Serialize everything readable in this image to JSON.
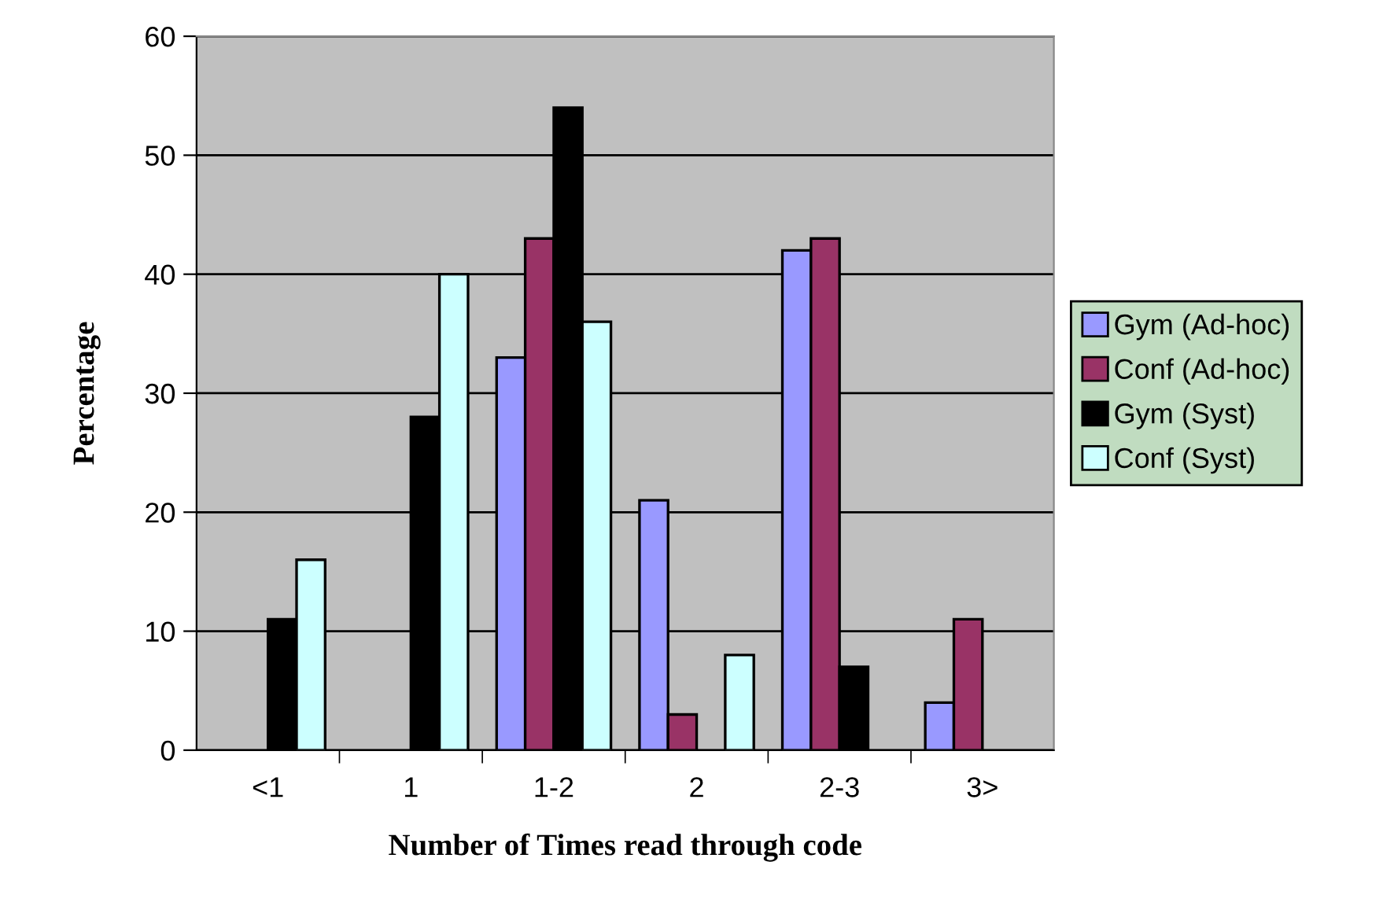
{
  "chart_data": {
    "type": "bar",
    "xlabel": "Number of Times read through code",
    "ylabel": "Percentage",
    "categories": [
      "<1",
      "1",
      "1-2",
      "2",
      "2-3",
      "3>"
    ],
    "series": [
      {
        "name": "Gym (Ad-hoc)",
        "color": "#9999ff",
        "values": [
          null,
          null,
          33,
          21,
          42,
          4
        ]
      },
      {
        "name": "Conf (Ad-hoc)",
        "color": "#993366",
        "values": [
          null,
          null,
          43,
          3,
          43,
          11
        ]
      },
      {
        "name": "Gym (Syst)",
        "color": "#000000",
        "values": [
          11,
          28,
          54,
          null,
          7,
          null
        ]
      },
      {
        "name": "Conf (Syst)",
        "color": "#ccffff",
        "values": [
          16,
          40,
          36,
          8,
          null,
          null
        ]
      }
    ],
    "ylim": [
      0,
      60
    ],
    "yticks": [
      0,
      10,
      20,
      30,
      40,
      50,
      60
    ],
    "grid": "y",
    "legend": "right"
  }
}
